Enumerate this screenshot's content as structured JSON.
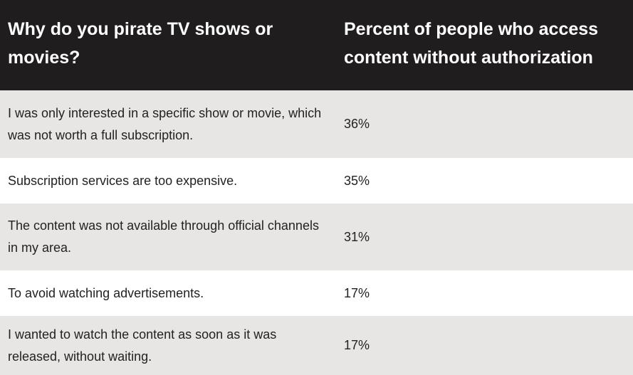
{
  "table": {
    "header": [
      "Why do you pirate TV shows or movies?",
      "Percent of people who access content without authorization"
    ],
    "rows": [
      [
        "I was only interested in a specific show or movie, which was not worth a full subscription.",
        "36%"
      ],
      [
        "Subscription services are too expensive.",
        "35%"
      ],
      [
        "The content was not available through official channels in my area.",
        "31%"
      ],
      [
        "To avoid watching advertisements.",
        "17%"
      ],
      [
        "I wanted to watch the content as soon as it was released, without waiting.",
        "17%"
      ]
    ]
  }
}
